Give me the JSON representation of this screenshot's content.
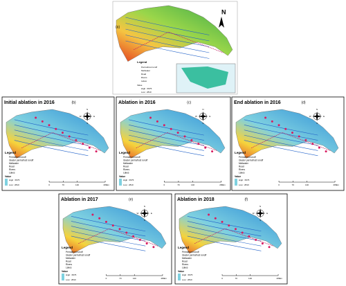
{
  "overview": {
    "label": "(a)",
    "north": "N",
    "legend": {
      "title": "Legend",
      "items": [
        "Permafrost runoff",
        "Meltwater",
        "Road",
        "Rivers",
        "Lakes"
      ],
      "value_title": "Value",
      "high": "High : 6575",
      "low": "Low : 2810"
    }
  },
  "panels": [
    {
      "title": "Initial ablation in 2016",
      "label": "(b)"
    },
    {
      "title": "Ablation in 2016",
      "label": "(c)"
    },
    {
      "title": "End ablation in 2016",
      "label": "(d)"
    },
    {
      "title": "Ablation in 2017",
      "label": "(e)"
    },
    {
      "title": "Ablation in 2018",
      "label": "(f)"
    }
  ],
  "legend": {
    "title": "Legend",
    "items": [
      "Permafrost runoff",
      "Glacier permafrost runoff",
      "Meltwater",
      "Road",
      "Rivers",
      "Lakes"
    ],
    "value_title": "Value",
    "high": "High : 6575",
    "low": "Low : 2810"
  },
  "compass": [
    "N",
    "E",
    "S",
    "W"
  ],
  "scale": {
    "ticks": [
      "0",
      "70",
      "140",
      "280"
    ],
    "unit": "km"
  }
}
